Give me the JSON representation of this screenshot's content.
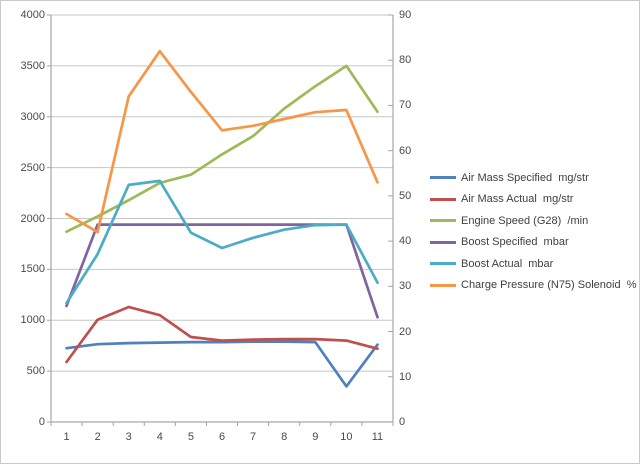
{
  "window": {
    "background": "#ffffff",
    "border_color": "#c9c9c9",
    "gridline_color": "#c6c6c6",
    "axis_line_color": "#a6a6a6",
    "label_color": "#4a4a4a"
  },
  "chart_data": {
    "type": "line",
    "title": "",
    "categories": [
      "1",
      "2",
      "3",
      "4",
      "5",
      "6",
      "7",
      "8",
      "9",
      "10",
      "11"
    ],
    "left_axis": {
      "min": 0,
      "max": 4000,
      "step": 500,
      "ticks": [
        "0",
        "500",
        "1000",
        "1500",
        "2000",
        "2500",
        "3000",
        "3500",
        "4000"
      ]
    },
    "right_axis": {
      "min": 0,
      "max": 90,
      "step": 10,
      "ticks": [
        "0",
        "10",
        "20",
        "30",
        "40",
        "50",
        "60",
        "70",
        "80",
        "90"
      ]
    },
    "grid": true,
    "legend_position": "right",
    "series": [
      {
        "name": "Air Mass Specified  mg/str",
        "axis": "left",
        "color": "#4F81BD",
        "values": [
          725,
          765,
          775,
          780,
          785,
          785,
          790,
          790,
          785,
          350,
          760
        ]
      },
      {
        "name": "Air Mass Actual  mg/str",
        "axis": "left",
        "color": "#C0504D",
        "values": [
          590,
          1005,
          1130,
          1050,
          835,
          800,
          810,
          815,
          815,
          800,
          720
        ]
      },
      {
        "name": "Engine Speed (G28)  /min",
        "axis": "left",
        "color": "#9BBB59",
        "values": [
          1870,
          2020,
          2180,
          2350,
          2430,
          2630,
          2810,
          3080,
          3300,
          3500,
          3050
        ]
      },
      {
        "name": "Boost Specified  mbar",
        "axis": "left",
        "color": "#8064A2",
        "values": [
          1140,
          1940,
          1940,
          1940,
          1940,
          1940,
          1940,
          1940,
          1940,
          1940,
          1030
        ]
      },
      {
        "name": "Boost Actual  mbar",
        "axis": "left",
        "color": "#4BACC6",
        "values": [
          1170,
          1650,
          2330,
          2370,
          1860,
          1710,
          1810,
          1890,
          1935,
          1940,
          1370
        ]
      },
      {
        "name": "Charge Pressure (N75) Solenoid  %",
        "axis": "right",
        "color": "#F79646",
        "values": [
          46,
          42,
          72,
          82,
          73,
          64.5,
          65.5,
          67,
          68.5,
          69,
          53
        ]
      }
    ]
  }
}
